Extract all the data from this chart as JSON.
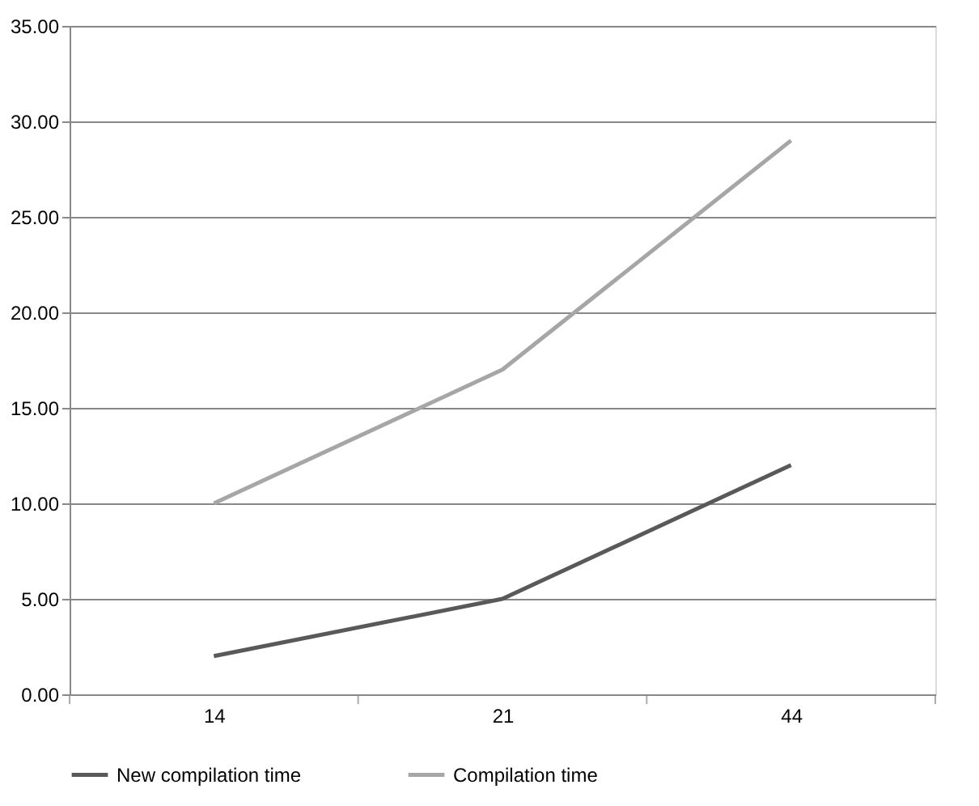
{
  "chart_data": {
    "type": "line",
    "categories": [
      "14",
      "21",
      "44"
    ],
    "series": [
      {
        "name": "New compilation time",
        "color": "#595959",
        "values": [
          2,
          5,
          12
        ]
      },
      {
        "name": "Compilation time",
        "color": "#a6a6a6",
        "values": [
          10,
          17,
          29
        ]
      }
    ],
    "ylim": [
      0,
      35
    ],
    "yticks": [
      {
        "value": 0,
        "label": "0.00"
      },
      {
        "value": 5,
        "label": "5.00"
      },
      {
        "value": 10,
        "label": "10.00"
      },
      {
        "value": 15,
        "label": "15.00"
      },
      {
        "value": 20,
        "label": "20.00"
      },
      {
        "value": 25,
        "label": "25.00"
      },
      {
        "value": 30,
        "label": "30.00"
      },
      {
        "value": 35,
        "label": "35.00"
      }
    ],
    "grid": "y",
    "legend": "bottom",
    "marker": "none",
    "line_style": "solid"
  }
}
